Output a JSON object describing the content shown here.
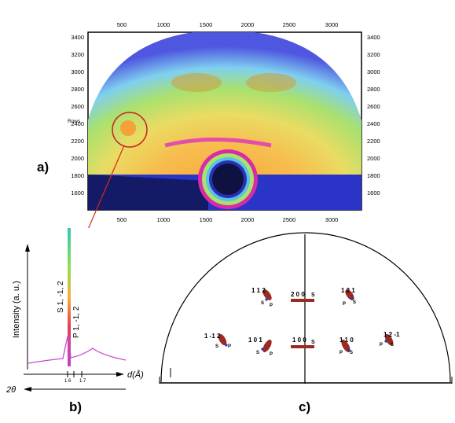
{
  "panel_a": {
    "label": "a)",
    "rows_label": "Rows",
    "top_ticks": [
      "500",
      "1000",
      "1500",
      "2000",
      "2500",
      "3000"
    ],
    "bottom_ticks": [
      "500",
      "1000",
      "1500",
      "2000",
      "2500",
      "3000"
    ],
    "left_ticks": [
      "3400",
      "3200",
      "3000",
      "2800",
      "2600",
      "2400",
      "2200",
      "2000",
      "1800",
      "1600"
    ],
    "right_ticks": [
      "3400",
      "3200",
      "3000",
      "2800",
      "2600",
      "2400",
      "2200",
      "2000",
      "1800",
      "1600"
    ]
  },
  "panel_b": {
    "label": "b)",
    "ylabel": "Intensity (a. u.)",
    "xlabel": "d(Å)",
    "xlabel2": "2θ",
    "peak_label_s": "S 1, -1, 2",
    "peak_label_p": "P 1, -1, 2",
    "tick_1": "1.6",
    "tick_2": "1.7"
  },
  "panel_c": {
    "label": "c)",
    "reflections": [
      {
        "hkl": "1 1 2",
        "s": "S",
        "p": "P"
      },
      {
        "hkl": "2 0 0",
        "s": "S",
        "p": ""
      },
      {
        "hkl": "1 2 1",
        "s": "S",
        "p": "P"
      },
      {
        "hkl": "1 -1 2",
        "s": "S",
        "p": "P"
      },
      {
        "hkl": "1 0 1",
        "s": "S",
        "p": "P"
      },
      {
        "hkl": "1 0 0",
        "s": "S",
        "p": ""
      },
      {
        "hkl": "1 1 0",
        "s": "S",
        "p": "P"
      },
      {
        "hkl": "1 2 -1",
        "s": "S",
        "p": "P"
      }
    ]
  },
  "colors": {
    "detector_bg": "#f5b73a",
    "detector_green": "#9adf6c",
    "detector_blue": "#2c2fd0",
    "magenta": "#d0209a",
    "spot": "#9b2a22",
    "arrow": "#d42a1a"
  }
}
